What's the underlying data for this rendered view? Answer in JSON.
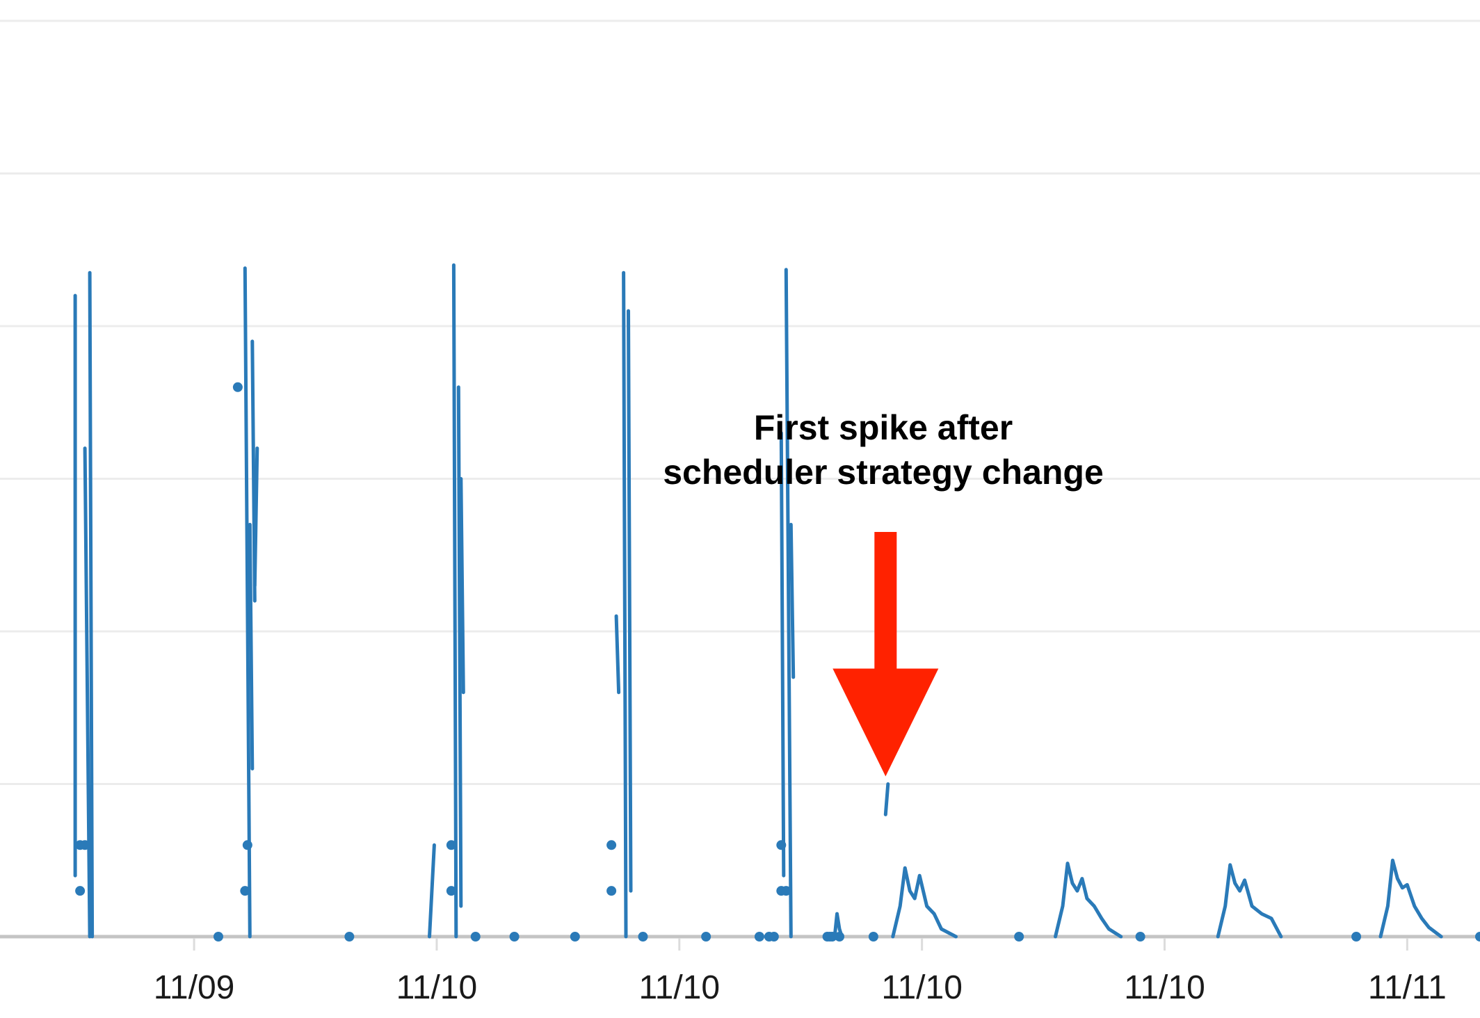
{
  "chart_data": {
    "type": "line",
    "title": "",
    "xlabel": "",
    "ylabel": "",
    "x_tick_labels": [
      "11/09",
      "11/10",
      "11/10",
      "11/10",
      "11/10",
      "11/11"
    ],
    "x_tick_positions": [
      1,
      2,
      3,
      4,
      5,
      6
    ],
    "xlim": [
      0.2,
      6.3
    ],
    "ylim": [
      0,
      6
    ],
    "grid": true,
    "colors": {
      "series": "#2a7ab8",
      "arrow": "#ff2200",
      "grid": "#ececec",
      "baseline": "#c4c4c4"
    },
    "annotation": {
      "lines": [
        "First spike after",
        "scheduler strategy change"
      ],
      "arrow_target": {
        "x": 3.85,
        "y": 1.05
      }
    },
    "series": [
      {
        "segments": [
          [
            [
              0.51,
              4.2
            ],
            [
              0.51,
              0.4
            ]
          ],
          [
            [
              0.55,
              3.2
            ],
            [
              0.57,
              0
            ]
          ],
          [
            [
              0.57,
              4.35
            ],
            [
              0.58,
              0
            ]
          ],
          [
            [
              1.21,
              4.38
            ],
            [
              1.23,
              0
            ]
          ],
          [
            [
              1.23,
              2.7
            ],
            [
              1.24,
              1.1
            ]
          ],
          [
            [
              1.24,
              3.9
            ],
            [
              1.25,
              2.2
            ]
          ],
          [
            [
              1.25,
              2.3
            ],
            [
              1.26,
              3.2
            ]
          ],
          [
            [
              1.97,
              0
            ],
            [
              1.99,
              0.6
            ]
          ],
          [
            [
              2.07,
              4.4
            ],
            [
              2.08,
              0
            ]
          ],
          [
            [
              2.09,
              3.6
            ],
            [
              2.1,
              0.2
            ]
          ],
          [
            [
              2.1,
              3.0
            ],
            [
              2.11,
              1.6
            ]
          ],
          [
            [
              2.74,
              2.1
            ],
            [
              2.75,
              1.6
            ]
          ],
          [
            [
              2.77,
              4.35
            ],
            [
              2.78,
              0
            ]
          ],
          [
            [
              2.79,
              4.1
            ],
            [
              2.8,
              0.3
            ]
          ],
          [
            [
              3.42,
              3.3
            ],
            [
              3.43,
              0.4
            ]
          ],
          [
            [
              3.44,
              4.37
            ],
            [
              3.46,
              0
            ]
          ],
          [
            [
              3.46,
              2.7
            ],
            [
              3.47,
              1.7
            ]
          ],
          [
            [
              3.64,
              0
            ],
            [
              3.65,
              0.15
            ],
            [
              3.66,
              0.05
            ],
            [
              3.67,
              0
            ]
          ],
          [
            [
              3.85,
              0.8
            ],
            [
              3.86,
              1.0
            ]
          ],
          [
            [
              3.88,
              0
            ],
            [
              3.91,
              0.2
            ],
            [
              3.93,
              0.45
            ],
            [
              3.95,
              0.3
            ],
            [
              3.97,
              0.25
            ],
            [
              3.99,
              0.4
            ],
            [
              4.02,
              0.2
            ],
            [
              4.05,
              0.15
            ],
            [
              4.08,
              0.05
            ],
            [
              4.14,
              0
            ]
          ],
          [
            [
              4.55,
              0
            ],
            [
              4.58,
              0.2
            ],
            [
              4.6,
              0.48
            ],
            [
              4.62,
              0.35
            ],
            [
              4.64,
              0.3
            ],
            [
              4.66,
              0.38
            ],
            [
              4.68,
              0.25
            ],
            [
              4.71,
              0.2
            ],
            [
              4.74,
              0.12
            ],
            [
              4.77,
              0.05
            ],
            [
              4.82,
              0
            ]
          ],
          [
            [
              5.22,
              0
            ],
            [
              5.25,
              0.2
            ],
            [
              5.27,
              0.47
            ],
            [
              5.29,
              0.35
            ],
            [
              5.31,
              0.3
            ],
            [
              5.33,
              0.37
            ],
            [
              5.36,
              0.2
            ],
            [
              5.4,
              0.15
            ],
            [
              5.44,
              0.12
            ],
            [
              5.48,
              0
            ]
          ],
          [
            [
              5.89,
              0
            ],
            [
              5.92,
              0.2
            ],
            [
              5.94,
              0.5
            ],
            [
              5.96,
              0.38
            ],
            [
              5.98,
              0.32
            ],
            [
              6.0,
              0.34
            ],
            [
              6.03,
              0.2
            ],
            [
              6.06,
              0.12
            ],
            [
              6.09,
              0.06
            ],
            [
              6.14,
              0
            ]
          ]
        ],
        "points": [
          [
            0.53,
            0.6
          ],
          [
            0.55,
            0.6
          ],
          [
            0.53,
            0.3
          ],
          [
            1.1,
            0
          ],
          [
            1.18,
            3.6
          ],
          [
            1.22,
            0.6
          ],
          [
            1.21,
            0.3
          ],
          [
            1.64,
            0
          ],
          [
            2.06,
            0.6
          ],
          [
            2.06,
            0.3
          ],
          [
            2.16,
            0
          ],
          [
            2.32,
            0
          ],
          [
            2.57,
            0
          ],
          [
            2.72,
            0.6
          ],
          [
            2.72,
            0.3
          ],
          [
            2.85,
            0
          ],
          [
            3.11,
            0
          ],
          [
            3.33,
            0
          ],
          [
            3.37,
            0
          ],
          [
            3.39,
            0
          ],
          [
            3.42,
            0.6
          ],
          [
            3.42,
            0.3
          ],
          [
            3.44,
            0.3
          ],
          [
            3.61,
            0
          ],
          [
            3.62,
            0
          ],
          [
            3.63,
            0
          ],
          [
            3.66,
            0
          ],
          [
            3.8,
            0
          ],
          [
            4.4,
            0
          ],
          [
            4.9,
            0
          ],
          [
            5.79,
            0
          ],
          [
            6.3,
            0
          ]
        ]
      }
    ]
  }
}
